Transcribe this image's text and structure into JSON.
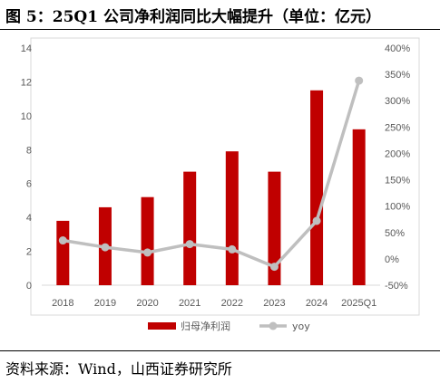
{
  "title": "图 5：25Q1 公司净利润同比大幅提升（单位：亿元）",
  "source": "资料来源：Wind，山西证券研究所",
  "colors": {
    "bar": "#C00000",
    "line": "#BFBFBF",
    "tick": "#595959"
  },
  "chart_data": {
    "type": "bar",
    "categories": [
      "2018",
      "2019",
      "2020",
      "2021",
      "2022",
      "2023",
      "2024",
      "2025Q1"
    ],
    "series": [
      {
        "name": "归母净利润",
        "type": "bar",
        "axis": "left",
        "values": [
          3.8,
          4.6,
          5.2,
          6.7,
          7.9,
          6.7,
          11.5,
          9.2
        ]
      },
      {
        "name": "yoy",
        "type": "line",
        "axis": "right",
        "unit": "%",
        "values": [
          35,
          22,
          12,
          28,
          18,
          -15,
          72,
          338
        ]
      }
    ],
    "left_axis": {
      "min": 0,
      "max": 14,
      "ticks": [
        "0",
        "2",
        "4",
        "6",
        "8",
        "10",
        "12",
        "14"
      ]
    },
    "right_axis": {
      "min": -50,
      "max": 400,
      "ticks": [
        "-50%",
        "0%",
        "50%",
        "100%",
        "150%",
        "200%",
        "250%",
        "300%",
        "350%",
        "400%"
      ]
    },
    "legend_position": "bottom",
    "grid": false
  }
}
